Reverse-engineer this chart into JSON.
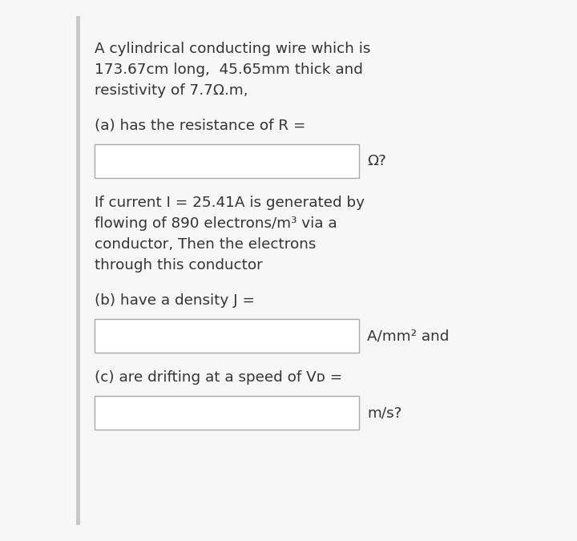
{
  "bg_color": "#f7f7f7",
  "left_bar_color": "#c8c8c8",
  "dark_circle_color": "#1e3a5f",
  "text_color": "#333333",
  "font_size": 13.2,
  "line1": "A cylindrical conducting wire which is",
  "line2": "173.67cm long,  45.65mm thick and",
  "line3": "resistivity of 7.7Ω.m,",
  "part_a_label": "(a) has the resistance of R =",
  "box_a_suffix": "Ω?",
  "part_b_intro1": "If current I = 25.41A is generated by",
  "part_b_intro2": "flowing of 890 electrons/m³ via a",
  "part_b_intro3": "conductor, Then the electrons",
  "part_b_intro4": "through this conductor",
  "part_b_label": "(b) have a density J =",
  "box_b_suffix": "A/mm² and",
  "part_c_label": "(c) are drifting at a speed of Vᴅ =",
  "box_c_suffix": "m/s?"
}
